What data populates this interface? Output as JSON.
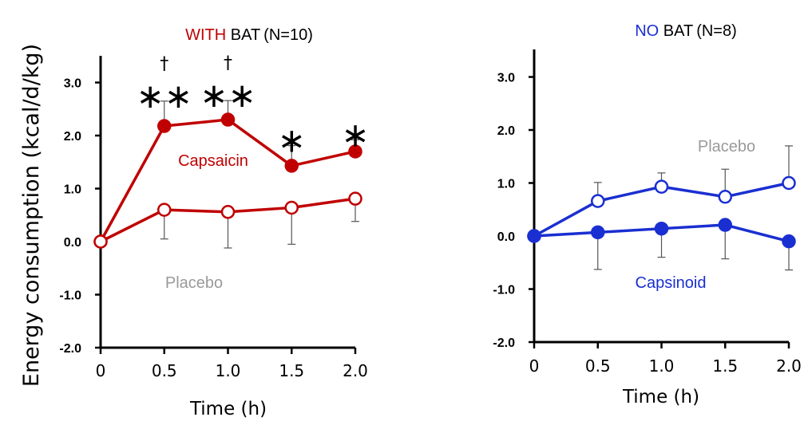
{
  "y_axis_label": "Energy consumption (kcal/d/kg)",
  "chart_data": [
    {
      "type": "line",
      "title_highlight": "WITH",
      "title_rest": " BAT",
      "title_n": " (N=10)",
      "title_color": "#c00000",
      "xlabel": "Time (h)",
      "x": [
        0,
        0.5,
        1.0,
        1.5,
        2.0
      ],
      "x_tick_labels": [
        "0",
        "0.5",
        "1.0",
        "1.5",
        "2.0"
      ],
      "y_ticks": [
        3.0,
        2.0,
        1.0,
        0.0,
        -1.0,
        -2.0
      ],
      "y_tick_labels": [
        "3.0",
        "2.0",
        "1.0",
        "0.0",
        "-1.0",
        "-2.0"
      ],
      "ylim": [
        -2.0,
        3.5
      ],
      "color": "#c00000",
      "series": [
        {
          "name": "Capsaicin",
          "filled": true,
          "values": [
            0.0,
            2.18,
            2.3,
            1.43,
            1.7
          ],
          "err_up": [
            0,
            0.47,
            0.36,
            0.38,
            0.22
          ],
          "err_down": [
            0,
            0,
            0,
            0,
            0
          ]
        },
        {
          "name": "Placebo",
          "filled": false,
          "values": [
            0.0,
            0.6,
            0.56,
            0.64,
            0.81
          ],
          "err_up": [
            0,
            0,
            0,
            0,
            0
          ],
          "err_down": [
            0,
            0.55,
            0.68,
            0.69,
            0.43
          ]
        }
      ],
      "significance": [
        {
          "x": 0.5,
          "dagger": "†",
          "stars": "∗∗"
        },
        {
          "x": 1.0,
          "dagger": "†",
          "stars": "∗∗"
        },
        {
          "x": 1.5,
          "dagger": "",
          "stars": "∗"
        },
        {
          "x": 2.0,
          "dagger": "",
          "stars": "∗"
        }
      ]
    },
    {
      "type": "line",
      "title_highlight": "NO",
      "title_rest": " BAT",
      "title_n": " (N=8)",
      "title_color": "#1a2fd1",
      "xlabel": "Time (h)",
      "x": [
        0,
        0.5,
        1.0,
        1.5,
        2.0
      ],
      "x_tick_labels": [
        "0",
        "0.5",
        "1.0",
        "1.5",
        "2.0"
      ],
      "y_ticks": [
        3.0,
        2.0,
        1.0,
        0.0,
        -1.0,
        -2.0
      ],
      "y_tick_labels": [
        "3.0",
        "2.0",
        "1.0",
        "0.0",
        "-1.0",
        "-2.0"
      ],
      "ylim": [
        -2.0,
        3.5
      ],
      "color": "#1a2fd1",
      "series": [
        {
          "name": "Placebo",
          "filled": false,
          "values": [
            0.0,
            0.66,
            0.93,
            0.74,
            1.0
          ],
          "err_up": [
            0,
            0.35,
            0.26,
            0.52,
            0.7
          ],
          "err_down": [
            0,
            0,
            0,
            0,
            0
          ]
        },
        {
          "name": "Capsinoid",
          "filled": true,
          "values": [
            0.0,
            0.07,
            0.14,
            0.21,
            -0.1
          ],
          "err_up": [
            0,
            0,
            0,
            0,
            0
          ],
          "err_down": [
            0,
            0.7,
            0.54,
            0.64,
            0.54
          ]
        }
      ],
      "significance": []
    }
  ],
  "colors": {
    "label_gray": "#9a9a9a",
    "errorbar": "#555555",
    "axis": "#000000"
  }
}
